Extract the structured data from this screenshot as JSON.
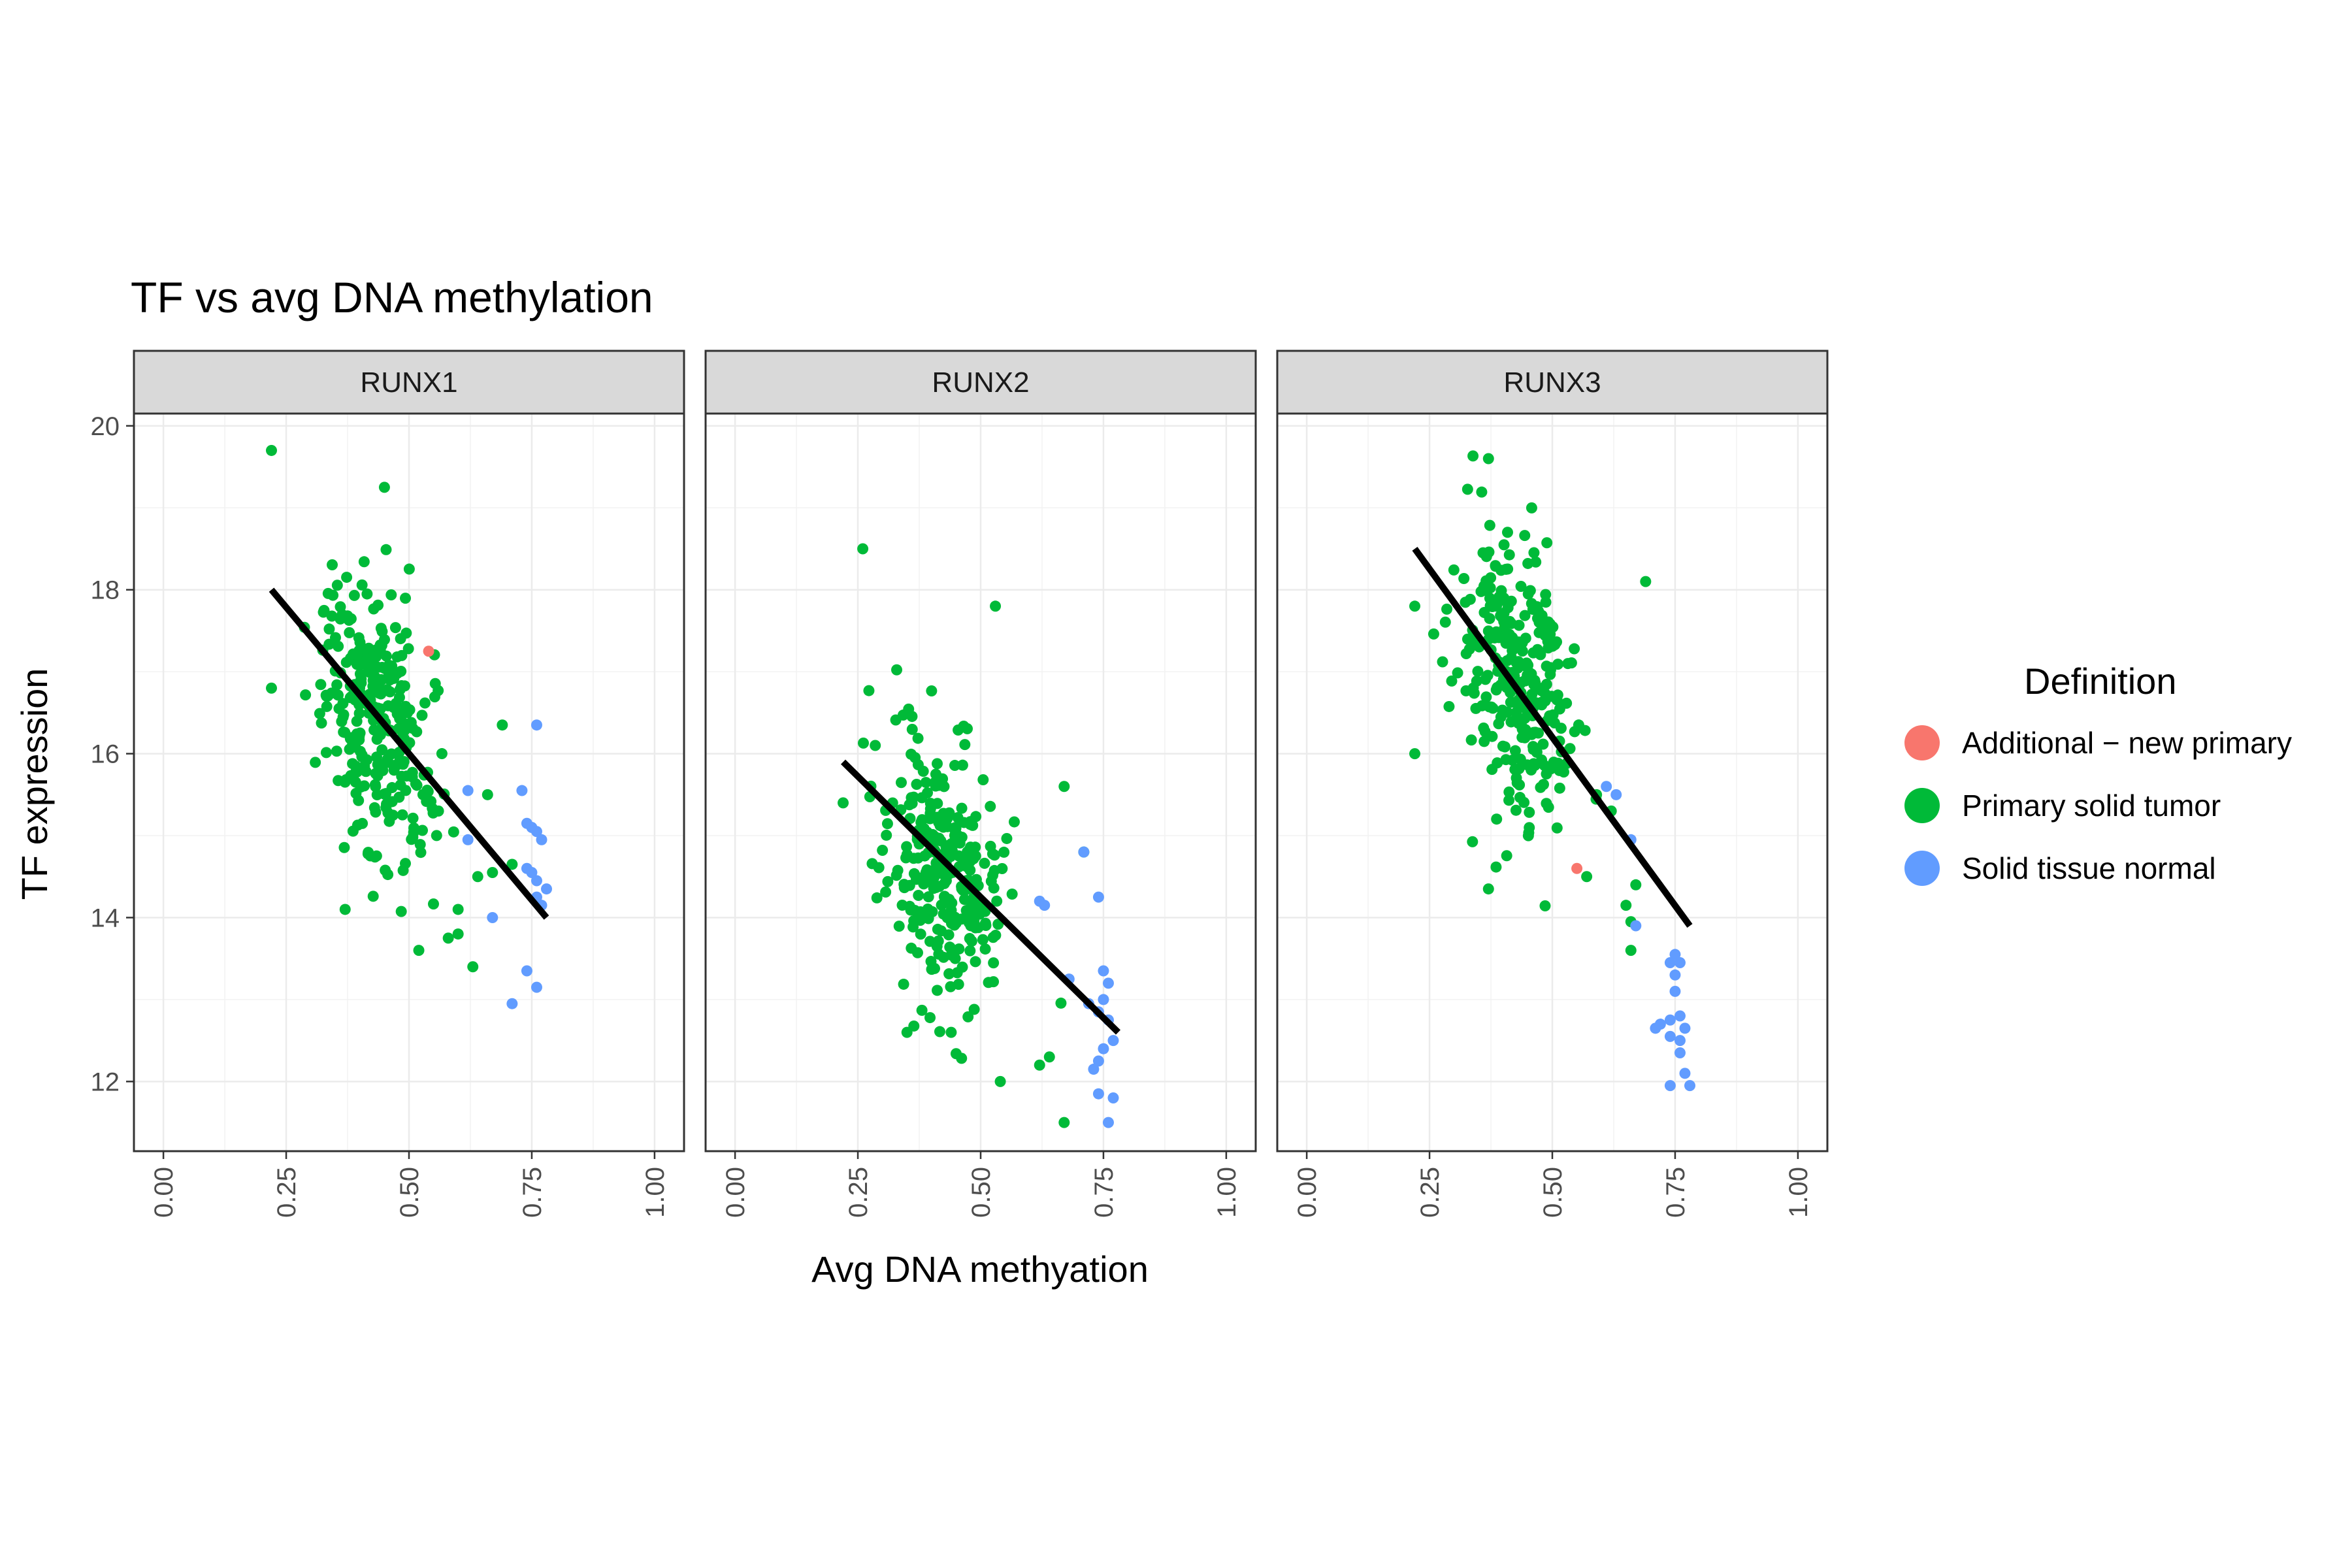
{
  "chart_data": {
    "type": "scatter",
    "title": "TF vs avg DNA methylation",
    "xlabel": "Avg DNA methyation",
    "ylabel": "TF expression",
    "xlim": [
      -0.06,
      1.06
    ],
    "ylim": [
      11.15,
      20.15
    ],
    "x_ticks": [
      0.0,
      0.25,
      0.5,
      0.75,
      1.0
    ],
    "x_tick_labels": [
      "0.00",
      "0.25",
      "0.50",
      "0.75",
      "1.00"
    ],
    "y_ticks": [
      12,
      14,
      16,
      18,
      20
    ],
    "y_tick_labels": [
      "12",
      "14",
      "16",
      "18",
      "20"
    ],
    "grid": true,
    "legend": {
      "title": "Definition",
      "position": "right",
      "entries": [
        {
          "label": "Additional − new primary",
          "color": "#F8766D"
        },
        {
          "label": "Primary solid tumor",
          "color": "#00BA38"
        },
        {
          "label": "Solid tissue normal",
          "color": "#619CFF"
        }
      ]
    },
    "panels": [
      {
        "label": "RUNX1",
        "fit_line": {
          "x": [
            0.22,
            0.78
          ],
          "y": [
            18.0,
            14.0
          ]
        },
        "series": [
          {
            "name": "Primary solid tumor",
            "cluster": {
              "n": 300,
              "x_mean": 0.43,
              "x_sd": 0.055,
              "y_mean": 16.4,
              "y_sd": 0.75,
              "slope": -6.0
            },
            "points": [
              [
                0.22,
                19.7
              ],
              [
                0.45,
                19.25
              ],
              [
                0.22,
                16.8
              ],
              [
                0.37,
                14.1
              ],
              [
                0.52,
                13.6
              ],
              [
                0.63,
                13.4
              ],
              [
                0.69,
                16.35
              ],
              [
                0.6,
                13.8
              ],
              [
                0.58,
                13.75
              ],
              [
                0.6,
                14.1
              ],
              [
                0.64,
                14.5
              ],
              [
                0.67,
                14.55
              ],
              [
                0.71,
                14.65
              ],
              [
                0.66,
                15.5
              ],
              [
                0.56,
                15.3
              ]
            ]
          },
          {
            "name": "Solid tissue normal",
            "points": [
              [
                0.76,
                16.35
              ],
              [
                0.73,
                15.55
              ],
              [
                0.62,
                15.55
              ],
              [
                0.62,
                14.95
              ],
              [
                0.67,
                14.0
              ],
              [
                0.74,
                15.15
              ],
              [
                0.75,
                15.1
              ],
              [
                0.76,
                15.05
              ],
              [
                0.77,
                14.95
              ],
              [
                0.78,
                14.35
              ],
              [
                0.75,
                14.55
              ],
              [
                0.76,
                14.45
              ],
              [
                0.76,
                14.25
              ],
              [
                0.77,
                14.15
              ],
              [
                0.74,
                13.35
              ],
              [
                0.76,
                13.15
              ],
              [
                0.71,
                12.95
              ],
              [
                0.74,
                14.6
              ]
            ]
          },
          {
            "name": "Additional − new primary",
            "points": [
              [
                0.54,
                17.25
              ]
            ]
          }
        ]
      },
      {
        "label": "RUNX2",
        "fit_line": {
          "x": [
            0.22,
            0.78
          ],
          "y": [
            15.9,
            12.6
          ]
        },
        "series": [
          {
            "name": "Primary solid tumor",
            "cluster": {
              "n": 300,
              "x_mean": 0.42,
              "x_sd": 0.06,
              "y_mean": 14.6,
              "y_sd": 0.8,
              "slope": -4.0
            },
            "points": [
              [
                0.26,
                18.5
              ],
              [
                0.53,
                17.8
              ],
              [
                0.22,
                15.4
              ],
              [
                0.67,
                15.6
              ],
              [
                0.71,
                14.8
              ],
              [
                0.67,
                11.5
              ],
              [
                0.54,
                12.0
              ],
              [
                0.62,
                12.2
              ],
              [
                0.64,
                12.3
              ],
              [
                0.35,
                12.6
              ],
              [
                0.44,
                12.6
              ]
            ]
          },
          {
            "name": "Solid tissue normal",
            "points": [
              [
                0.62,
                14.2
              ],
              [
                0.63,
                14.15
              ],
              [
                0.74,
                14.25
              ],
              [
                0.71,
                14.8
              ],
              [
                0.75,
                13.35
              ],
              [
                0.76,
                13.2
              ],
              [
                0.75,
                13.0
              ],
              [
                0.74,
                12.85
              ],
              [
                0.76,
                12.75
              ],
              [
                0.77,
                12.5
              ],
              [
                0.75,
                12.4
              ],
              [
                0.74,
                12.25
              ],
              [
                0.73,
                12.15
              ],
              [
                0.74,
                11.85
              ],
              [
                0.77,
                11.8
              ],
              [
                0.76,
                11.5
              ],
              [
                0.68,
                13.25
              ],
              [
                0.72,
                12.95
              ]
            ]
          }
        ]
      },
      {
        "label": "RUNX3",
        "fit_line": {
          "x": [
            0.22,
            0.78
          ],
          "y": [
            18.5,
            13.9
          ]
        },
        "series": [
          {
            "name": "Primary solid tumor",
            "cluster": {
              "n": 300,
              "x_mean": 0.43,
              "x_sd": 0.055,
              "y_mean": 16.9,
              "y_sd": 0.8,
              "slope": -5.0
            },
            "points": [
              [
                0.37,
                19.6
              ],
              [
                0.69,
                18.1
              ],
              [
                0.22,
                17.8
              ],
              [
                0.22,
                16.0
              ],
              [
                0.37,
                14.35
              ],
              [
                0.57,
                14.5
              ],
              [
                0.65,
                14.15
              ],
              [
                0.67,
                14.4
              ],
              [
                0.66,
                13.95
              ],
              [
                0.66,
                13.6
              ],
              [
                0.62,
                15.3
              ],
              [
                0.59,
                15.5
              ]
            ]
          },
          {
            "name": "Solid tissue normal",
            "points": [
              [
                0.61,
                15.6
              ],
              [
                0.63,
                15.5
              ],
              [
                0.66,
                14.95
              ],
              [
                0.67,
                13.9
              ],
              [
                0.75,
                13.55
              ],
              [
                0.74,
                13.45
              ],
              [
                0.76,
                13.45
              ],
              [
                0.75,
                13.3
              ],
              [
                0.75,
                13.1
              ],
              [
                0.76,
                12.8
              ],
              [
                0.74,
                12.75
              ],
              [
                0.77,
                12.65
              ],
              [
                0.71,
                12.65
              ],
              [
                0.72,
                12.7
              ],
              [
                0.74,
                12.55
              ],
              [
                0.76,
                12.5
              ],
              [
                0.77,
                12.1
              ],
              [
                0.74,
                11.95
              ],
              [
                0.78,
                11.95
              ],
              [
                0.76,
                12.35
              ]
            ]
          },
          {
            "name": "Additional − new primary",
            "points": [
              [
                0.55,
                14.6
              ]
            ]
          }
        ]
      }
    ]
  }
}
